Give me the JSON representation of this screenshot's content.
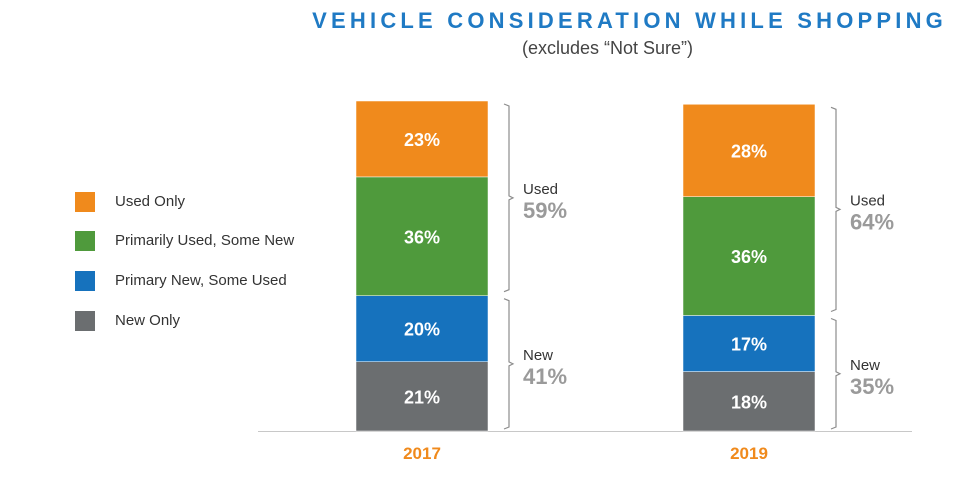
{
  "title": "VEHICLE CONSIDERATION WHILE SHOPPING",
  "subtitle": "(excludes “Not Sure”)",
  "legend": [
    {
      "label": "Used Only",
      "color": "#f08a1c"
    },
    {
      "label": "Primarily Used, Some New",
      "color": "#4f9a3c"
    },
    {
      "label": "Primary New, Some Used",
      "color": "#1672bd"
    },
    {
      "label": "New Only",
      "color": "#6b6e70"
    }
  ],
  "chart_data": {
    "type": "bar",
    "stacked": true,
    "categories": [
      "2017",
      "2019"
    ],
    "series": [
      {
        "name": "New Only",
        "values": [
          21,
          18
        ],
        "labels": [
          "21%",
          "18%"
        ],
        "color": "#6b6e70"
      },
      {
        "name": "Primary New, Some Used",
        "values": [
          20,
          17
        ],
        "labels": [
          "20%",
          "17%"
        ],
        "color": "#1672bd"
      },
      {
        "name": "Primarily Used, Some New",
        "values": [
          36,
          36
        ],
        "labels": [
          "36%",
          "36%"
        ],
        "color": "#4f9a3c"
      },
      {
        "name": "Used Only",
        "values": [
          23,
          28
        ],
        "labels": [
          "23%",
          "28%"
        ],
        "color": "#f08a1c"
      }
    ],
    "groups": [
      {
        "category": "2017",
        "used_label": "Used",
        "used_value": "59%",
        "new_label": "New",
        "new_value": "41%"
      },
      {
        "category": "2019",
        "used_label": "Used",
        "used_value": "64%",
        "new_label": "New",
        "new_value": "35%"
      }
    ],
    "category_label_color": "#f08a1c",
    "ylim": [
      0,
      100
    ]
  }
}
